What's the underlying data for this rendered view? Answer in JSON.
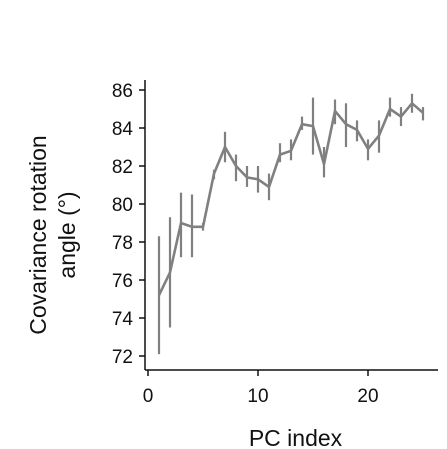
{
  "chart_data": {
    "type": "line",
    "title": "",
    "xlabel": "PC index",
    "ylabel_lines": [
      "Covariance rotation",
      "angle (°)"
    ],
    "xlim": [
      0,
      26
    ],
    "ylim": [
      71.5,
      86.5
    ],
    "xticks": [
      0,
      10,
      20
    ],
    "yticks": [
      72,
      74,
      76,
      78,
      80,
      82,
      84,
      86
    ],
    "grid": false,
    "legend": "none",
    "line_color": "#808080",
    "series": [
      {
        "x": [
          1,
          2,
          3,
          4,
          5,
          6,
          7,
          8,
          9,
          10,
          11,
          12,
          13,
          14,
          15,
          16,
          17,
          18,
          19,
          20,
          21,
          22,
          23,
          24,
          25
        ],
        "y": [
          75.2,
          76.4,
          79.0,
          78.8,
          78.8,
          81.6,
          83.0,
          82.0,
          81.4,
          81.3,
          80.9,
          82.6,
          82.8,
          84.2,
          84.1,
          82.1,
          84.9,
          84.2,
          83.9,
          82.9,
          83.6,
          85.0,
          84.6,
          85.3,
          84.8
        ],
        "err_low": [
          72.1,
          73.5,
          77.2,
          77.2,
          78.6,
          81.3,
          82.2,
          81.2,
          80.9,
          80.6,
          80.2,
          82.2,
          82.3,
          83.9,
          82.6,
          81.4,
          84.2,
          83.0,
          83.3,
          82.3,
          82.7,
          84.6,
          84.1,
          84.8,
          84.4
        ],
        "err_high": [
          78.3,
          79.3,
          80.6,
          80.5,
          79.0,
          81.8,
          83.8,
          82.6,
          82.0,
          82.0,
          81.6,
          83.2,
          83.4,
          84.6,
          85.6,
          83.0,
          85.5,
          85.3,
          84.4,
          83.4,
          84.4,
          85.6,
          85.1,
          85.8,
          85.1
        ]
      }
    ]
  }
}
